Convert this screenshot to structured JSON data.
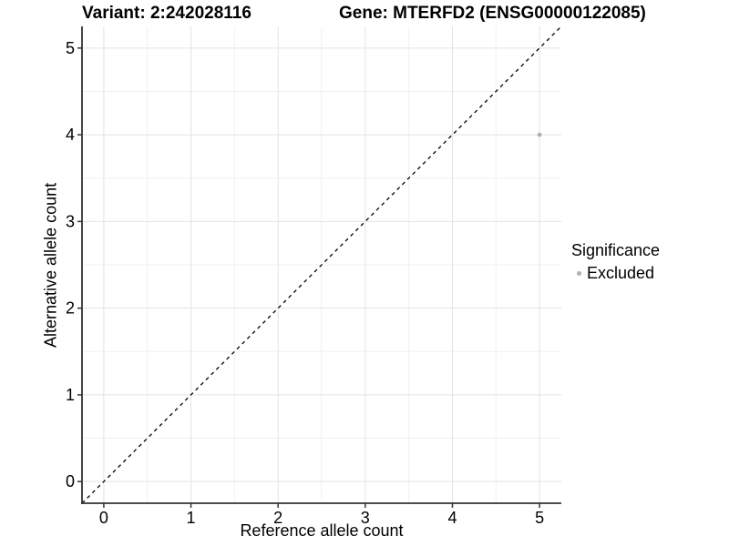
{
  "chart_data": {
    "type": "scatter",
    "title_left": "Variant: 2:242028116",
    "title_right": "Gene: MTERFD2 (ENSG00000122085)",
    "xlabel": "Reference allele count",
    "ylabel": "Alternative allele count",
    "xlim": [
      -0.25,
      5.25
    ],
    "ylim": [
      -0.25,
      5.25
    ],
    "x_ticks": [
      0,
      1,
      2,
      3,
      4,
      5
    ],
    "y_ticks": [
      0,
      1,
      2,
      3,
      4,
      5
    ],
    "x_minor_ticks": [
      0.5,
      1.5,
      2.5,
      3.5,
      4.5
    ],
    "y_minor_ticks": [
      0.5,
      1.5,
      2.5,
      3.5,
      4.5
    ],
    "grid": "major+minor",
    "legend_position": "right",
    "reference_line": {
      "kind": "identity",
      "style": "dashed",
      "color": "#000000",
      "from": [
        -0.25,
        -0.25
      ],
      "to": [
        5.25,
        5.25
      ]
    },
    "series": [
      {
        "name": "Excluded",
        "color": "#b0b0b0",
        "point_radius": 2.4,
        "points": [
          {
            "x": 5,
            "y": 4
          }
        ]
      }
    ],
    "legend": {
      "title": "Significance",
      "entries": [
        {
          "label": "Excluded",
          "color": "#b0b0b0",
          "marker": "circle"
        }
      ]
    },
    "colors": {
      "background": "#ffffff",
      "grid_major": "#e3e3e3",
      "grid_minor": "#f1f1f1",
      "axis": "#333333",
      "text": "#000000"
    }
  }
}
